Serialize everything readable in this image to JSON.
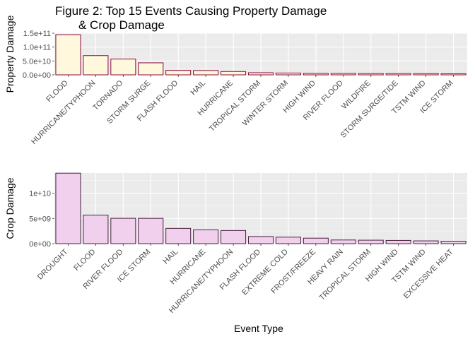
{
  "title_line1": "Figure 2: Top 15 Events Causing Property Damage",
  "title_line2": "& Crop Damage",
  "chart_data": [
    {
      "type": "bar",
      "ylabel": "Property Damage",
      "xlabel": "",
      "ylim": [
        0,
        150000000000
      ],
      "yticks": [
        0,
        50000000000,
        100000000000,
        150000000000
      ],
      "ytick_labels": [
        "0.0e+00",
        "5.0e+10",
        "1.0e+11",
        "1.5e+11"
      ],
      "fill": "#fff8dc",
      "stroke": "#8b0a3a",
      "categories": [
        "FLOOD",
        "HURRICANE/TYPHOON",
        "TORNADO",
        "STORM SURGE",
        "FLASH FLOOD",
        "HAIL",
        "HURRICANE",
        "TROPICAL STORM",
        "WINTER STORM",
        "HIGH WIND",
        "RIVER FLOOD",
        "WILDFIRE",
        "STORM SURGE/TIDE",
        "TSTM WIND",
        "ICE STORM"
      ],
      "values": [
        144700000000,
        69300000000,
        56900000000,
        43300000000,
        16100000000,
        15700000000,
        11900000000,
        7700000000,
        6700000000,
        5300000000,
        5100000000,
        4800000000,
        4600000000,
        4500000000,
        3900000000
      ],
      "grid": true
    },
    {
      "type": "bar",
      "ylabel": "Crop Damage",
      "xlabel": "Event Type",
      "ylim": [
        0,
        14000000000
      ],
      "yticks": [
        0,
        5000000000,
        10000000000
      ],
      "ytick_labels": [
        "0e+00",
        "5e+09",
        "1e+10"
      ],
      "fill": "#f0d0ec",
      "stroke": "#4a2040",
      "categories": [
        "DROUGHT",
        "FLOOD",
        "RIVER FLOOD",
        "ICE STORM",
        "HAIL",
        "HURRICANE",
        "HURRICANE/TYPHOON",
        "FLASH FLOOD",
        "EXTREME COLD",
        "FROST/FREEZE",
        "HEAVY RAIN",
        "TROPICAL STORM",
        "HIGH WIND",
        "TSTM WIND",
        "EXCESSIVE HEAT"
      ],
      "values": [
        13970000000,
        5660000000,
        5030000000,
        5020000000,
        3030000000,
        2740000000,
        2610000000,
        1420000000,
        1290000000,
        1090000000,
        730000000,
        690000000,
        640000000,
        550000000,
        490000000
      ],
      "grid": true
    }
  ]
}
